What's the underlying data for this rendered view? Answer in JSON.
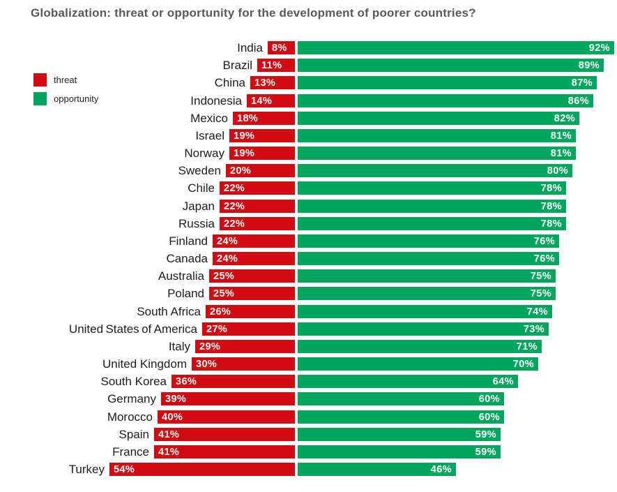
{
  "title": "Globalization: threat or opportunity for the development of poorer countries?",
  "legend": {
    "position": "top-left",
    "items": [
      {
        "label": "threat",
        "color": "#d20a11"
      },
      {
        "label": "opportunity",
        "color": "#00a65d"
      }
    ]
  },
  "chart_data": {
    "type": "bar",
    "orientation": "horizontal-diverging",
    "title": "Globalization: threat or opportunity for the development of poorer countries?",
    "value_suffix": "%",
    "grid": false,
    "axis_labels_hidden": true,
    "categories": [
      "India",
      "Brazil",
      "China",
      "Indonesia",
      "Mexico",
      "Israel",
      "Norway",
      "Sweden",
      "Chile",
      "Japan",
      "Russia",
      "Finland",
      "Canada",
      "Australia",
      "Poland",
      "South Africa",
      "United States of America",
      "Italy",
      "United Kingdom",
      "South Korea",
      "Germany",
      "Morocco",
      "Spain",
      "France",
      "Turkey"
    ],
    "series": [
      {
        "name": "threat",
        "side": "left",
        "color": "#d20a11",
        "values": [
          8,
          11,
          13,
          14,
          18,
          19,
          19,
          20,
          22,
          22,
          22,
          24,
          24,
          25,
          25,
          26,
          27,
          29,
          30,
          36,
          39,
          40,
          41,
          41,
          54
        ]
      },
      {
        "name": "opportunity",
        "side": "right",
        "color": "#00a65d",
        "values": [
          92,
          89,
          87,
          86,
          82,
          81,
          81,
          80,
          78,
          78,
          78,
          76,
          76,
          75,
          75,
          74,
          73,
          71,
          70,
          64,
          60,
          60,
          59,
          59,
          46
        ]
      }
    ],
    "value_range_percent": [
      0,
      100
    ]
  }
}
